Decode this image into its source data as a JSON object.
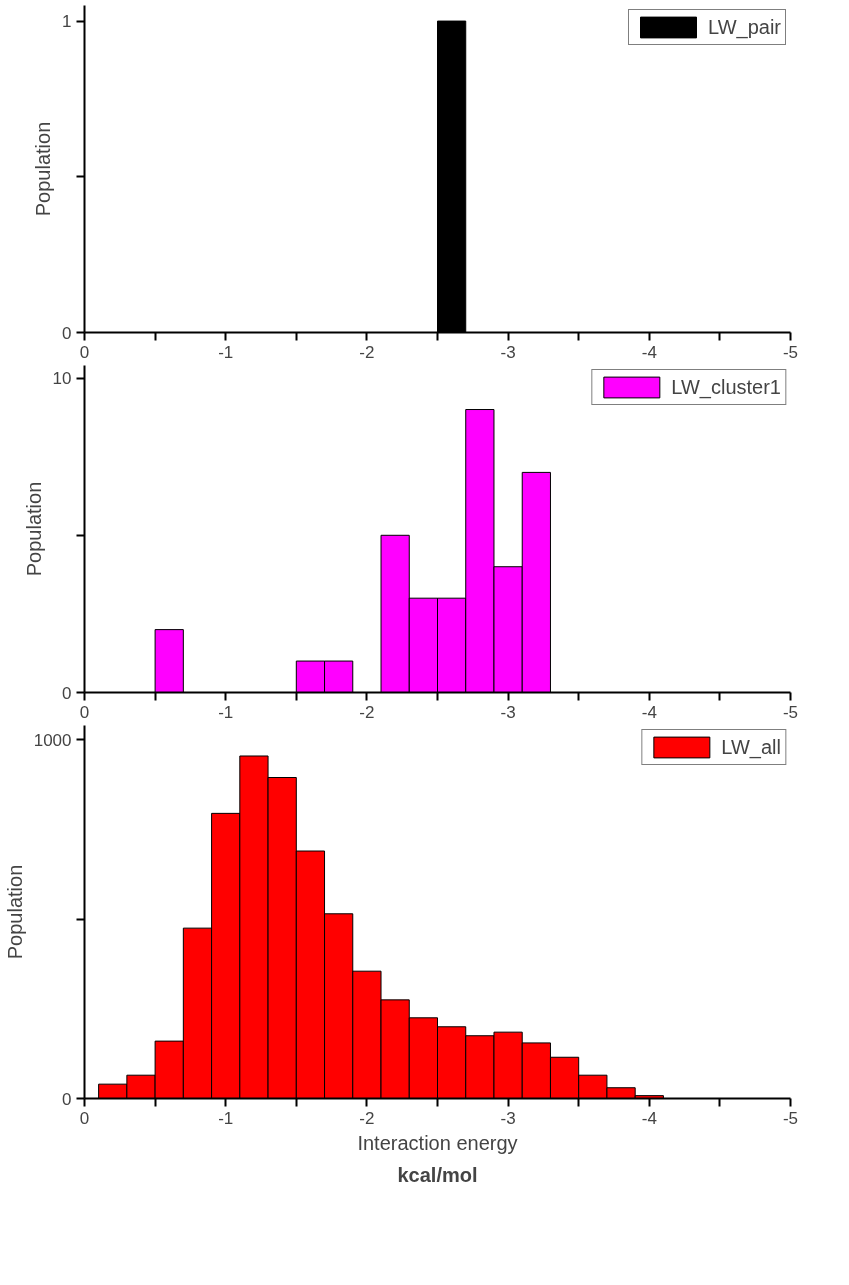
{
  "chart_data": [
    {
      "type": "histogram",
      "ylabel": "Population",
      "legend": "top right",
      "grid": false,
      "bins": [
        -2.5,
        -2.7
      ],
      "series": [
        {
          "name": "LW_pair",
          "color": "#000000",
          "values": [
            1
          ]
        }
      ],
      "xlim": [
        0,
        -5
      ],
      "ylim": [
        0,
        1.05
      ],
      "xticks": [
        0,
        {
          "value": -0.5,
          "label": null
        },
        -1,
        {
          "value": -1.5,
          "label": null
        },
        -2,
        {
          "value": -2.5,
          "label": null
        },
        -3,
        {
          "value": -3.5,
          "label": null
        },
        -4,
        {
          "value": -4.5,
          "label": null
        },
        -5
      ],
      "yticks": [
        0,
        {
          "value": 0.5,
          "label": null
        },
        1
      ]
    },
    {
      "type": "histogram",
      "ylabel": "Population",
      "legend": "top right",
      "grid": false,
      "bins": [
        -0.5,
        -0.7,
        -0.9,
        -1.1,
        -1.3,
        -1.5,
        -1.7,
        -1.9,
        -2.1,
        -2.3,
        -2.5,
        -2.7,
        -2.9,
        -3.1,
        -3.3
      ],
      "series": [
        {
          "name": "LW_cluster1",
          "color": "#ff00ff",
          "values": [
            2,
            0,
            0,
            0,
            0,
            1,
            1,
            0,
            5,
            3,
            3,
            9,
            4,
            7
          ]
        }
      ],
      "xlim": [
        0,
        -5
      ],
      "ylim": [
        0,
        10.4
      ],
      "xticks": [
        0,
        {
          "value": -0.5,
          "label": null
        },
        -1,
        {
          "value": -1.5,
          "label": null
        },
        -2,
        {
          "value": -2.5,
          "label": null
        },
        -3,
        {
          "value": -3.5,
          "label": null
        },
        -4,
        {
          "value": -4.5,
          "label": null
        },
        -5
      ],
      "yticks": [
        0,
        {
          "value": 5,
          "label": null
        },
        10
      ]
    },
    {
      "type": "histogram",
      "ylabel": "Population",
      "xlabel": "Interaction energy",
      "annotations": [
        "kcal/mol"
      ],
      "legend": "top right",
      "grid": false,
      "bins": [
        -0.1,
        -0.3,
        -0.5,
        -0.7,
        -0.9,
        -1.1,
        -1.3,
        -1.5,
        -1.7,
        -1.9,
        -2.1,
        -2.3,
        -2.5,
        -2.7,
        -2.9,
        -3.1,
        -3.3,
        -3.5,
        -3.7,
        -3.9,
        -4.1
      ],
      "series": [
        {
          "name": "LW_all",
          "color": "#ff0000",
          "values": [
            40,
            65,
            160,
            475,
            795,
            955,
            895,
            690,
            515,
            355,
            275,
            225,
            200,
            175,
            185,
            155,
            115,
            65,
            30,
            8
          ]
        }
      ],
      "xlim": [
        0,
        -5
      ],
      "ylim": [
        0,
        1040
      ],
      "xticks": [
        0,
        {
          "value": -0.5,
          "label": null
        },
        -1,
        {
          "value": -1.5,
          "label": null
        },
        -2,
        {
          "value": -2.5,
          "label": null
        },
        -3,
        {
          "value": -3.5,
          "label": null
        },
        -4,
        {
          "value": -4.5,
          "label": null
        },
        -5
      ],
      "yticks": [
        0,
        {
          "value": 500,
          "label": null
        },
        1000
      ]
    }
  ]
}
